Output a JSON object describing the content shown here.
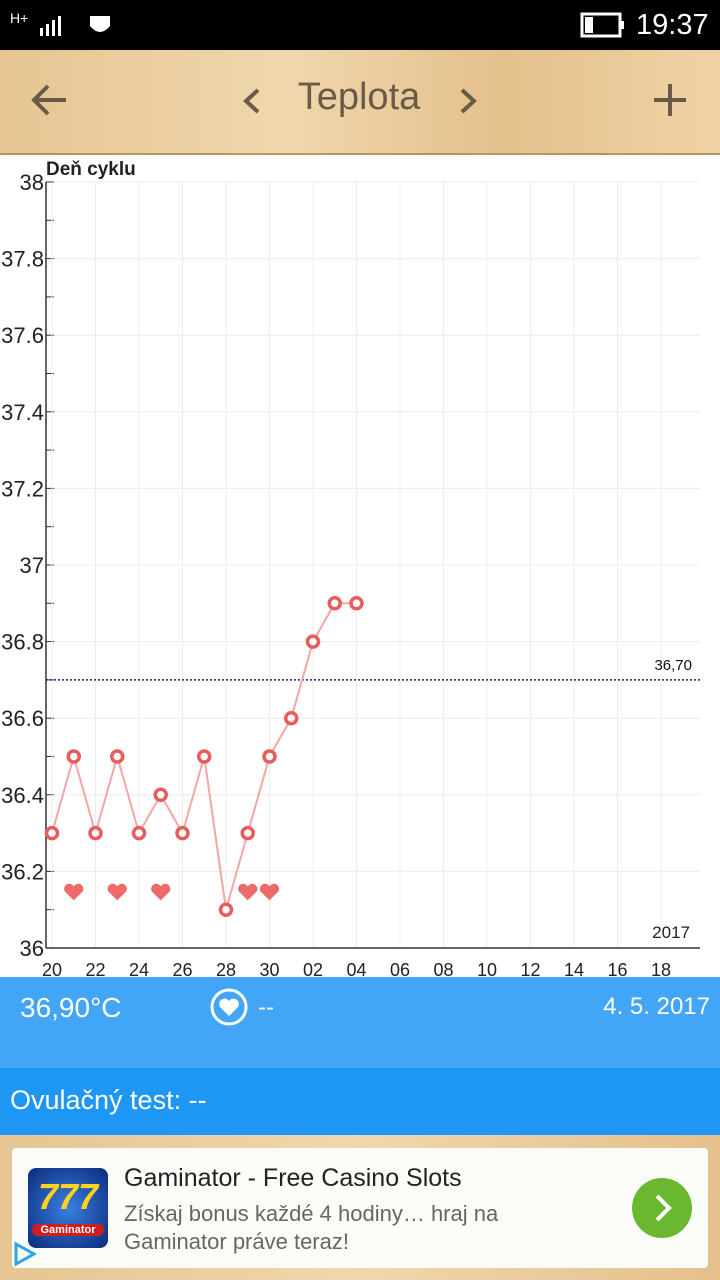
{
  "status_bar": {
    "network": "H+",
    "time": "19:37"
  },
  "app_bar": {
    "title": "Teplota"
  },
  "chart_data": {
    "type": "line",
    "xlabel": "Deň cyklu",
    "categories": [
      "20",
      null,
      "22",
      null,
      "24",
      null,
      "26",
      null,
      "28",
      null,
      "30",
      null,
      "02",
      null,
      "04",
      null,
      "06",
      null,
      "08",
      null,
      "10",
      null,
      "12",
      null,
      "14",
      null,
      "16",
      null,
      "18",
      null
    ],
    "series": [
      {
        "color": "#e85c5c",
        "values": [
          36.3,
          36.5,
          36.3,
          36.5,
          36.3,
          36.4,
          36.3,
          36.5,
          36.1,
          36.3,
          36.5,
          36.6,
          36.8,
          36.9,
          36.9,
          null,
          null,
          null,
          null,
          null,
          null,
          null,
          null,
          null,
          null,
          null,
          null,
          null,
          null,
          null
        ]
      }
    ],
    "heart_days": [
      1,
      3,
      5,
      9,
      10
    ],
    "ylim": [
      36,
      38
    ],
    "yticks": [
      36,
      36.2,
      36.4,
      36.6,
      36.8,
      37,
      37.2,
      37.4,
      37.6,
      37.8,
      38
    ],
    "minor_yticks": [
      36.1,
      36.3,
      36.5,
      36.7,
      36.9,
      37.1,
      37.3,
      37.5,
      37.7,
      37.9
    ],
    "reference_line": {
      "value": 36.7,
      "label": "36,70",
      "color": "#1a237e"
    },
    "year": "2017",
    "grid": true
  },
  "info": {
    "temperature": "36,90°C",
    "intercourse": "--",
    "date": "4. 5. 2017"
  },
  "ovulation": {
    "label": "Ovulačný test: --"
  },
  "ad": {
    "title": "Gaminator - Free Casino Slots",
    "text": "Získaj bonus každé 4 hodiny… hraj na Gaminator práve teraz!",
    "icon_text": "777",
    "icon_brand": "Gaminator"
  }
}
